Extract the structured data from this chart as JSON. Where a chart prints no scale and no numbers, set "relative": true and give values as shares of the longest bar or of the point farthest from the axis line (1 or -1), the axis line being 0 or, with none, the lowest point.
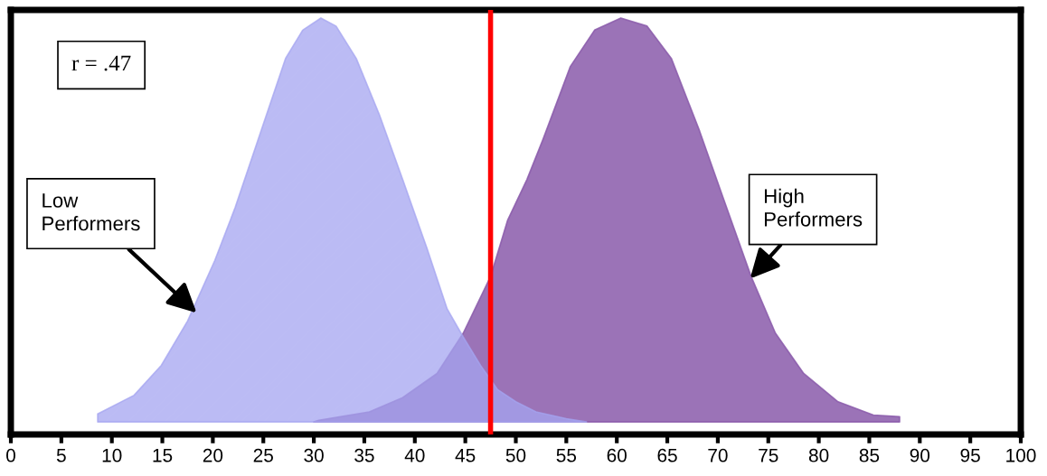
{
  "chart_data": {
    "type": "area",
    "relative": true,
    "xlim": [
      0,
      100
    ],
    "xticks": [
      0,
      5,
      10,
      15,
      20,
      25,
      30,
      35,
      40,
      45,
      50,
      55,
      60,
      65,
      70,
      75,
      80,
      85,
      90,
      95,
      100
    ],
    "grid": false,
    "legend": false,
    "series": [
      {
        "color": "#8a5aaa",
        "x": [
          30,
          30.5,
          35.5,
          38.8,
          42.2,
          44.8,
          47.5,
          49.2,
          51.1,
          52.7,
          55.4,
          57.8,
          60.4,
          63.0,
          65.4,
          68.2,
          70.6,
          73.3,
          75.7,
          78.5,
          81.9,
          85.4,
          88.0,
          88.0
        ],
        "values": [
          0,
          0.004,
          0.025,
          0.06,
          0.12,
          0.22,
          0.36,
          0.5,
          0.6,
          0.7,
          0.88,
          0.97,
          1.0,
          0.98,
          0.9,
          0.72,
          0.55,
          0.36,
          0.22,
          0.12,
          0.05,
          0.017,
          0.013,
          0
        ]
      },
      {
        "color": "#a4a4f0",
        "x": [
          8.6,
          8.6,
          12.2,
          14.9,
          17.5,
          20.2,
          22.2,
          24.9,
          27.2,
          28.9,
          30.7,
          32.2,
          34.2,
          36.5,
          38.8,
          41.2,
          43.2,
          44.8,
          46.5,
          48.2,
          50,
          52,
          55,
          57
        ],
        "values": [
          0,
          0.02,
          0.066,
          0.14,
          0.25,
          0.4,
          0.53,
          0.73,
          0.9,
          0.97,
          1.0,
          0.98,
          0.9,
          0.76,
          0.6,
          0.43,
          0.28,
          0.21,
          0.14,
          0.08,
          0.05,
          0.025,
          0.008,
          0
        ]
      }
    ],
    "ref_lines": [
      {
        "axis": "x",
        "value": 47.5,
        "color": "#ff0000"
      }
    ],
    "annotations": [
      "r = .47",
      {
        "text": "Low\nPerformers",
        "x": 18.4,
        "y": 0.27
      },
      {
        "text": "High\nPerformers",
        "x": 73.2,
        "y": 0.355
      }
    ]
  }
}
